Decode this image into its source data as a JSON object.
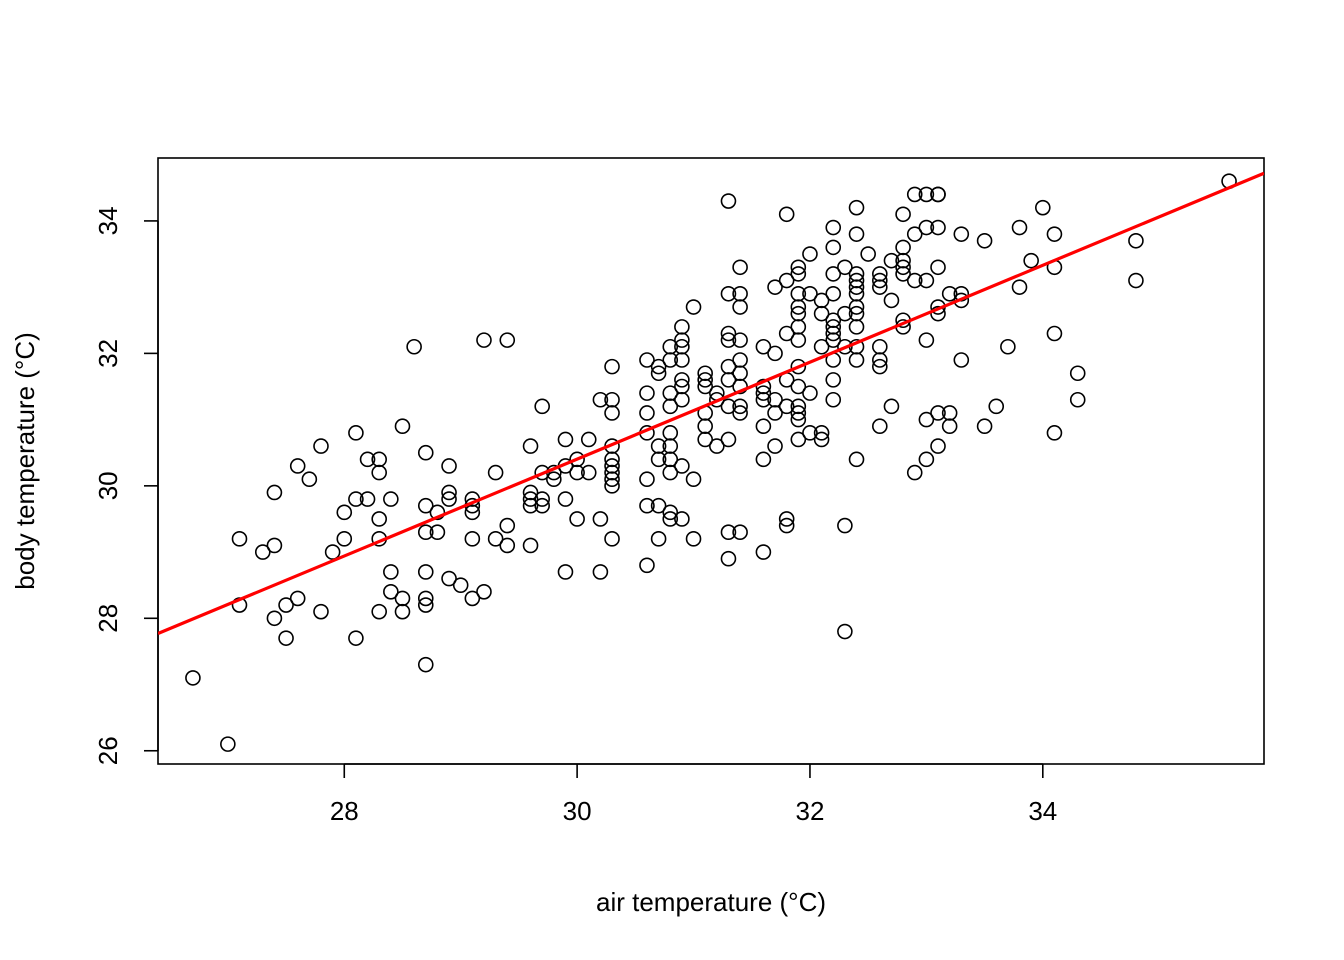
{
  "chart_data": {
    "type": "scatter",
    "xlabel": "air temperature (°C)",
    "ylabel": "body temperature (°C)",
    "xlim": [
      26.4,
      35.9
    ],
    "ylim": [
      25.8,
      34.95
    ],
    "xticks": [
      28,
      30,
      32,
      34
    ],
    "yticks": [
      26,
      28,
      30,
      32,
      34
    ],
    "grid": false,
    "point_color": "#000000",
    "fit_line": {
      "color": "#ff0000",
      "x": [
        26.4,
        35.9
      ],
      "y": [
        27.77,
        34.72
      ]
    },
    "points": [
      [
        26.7,
        27.1
      ],
      [
        27.0,
        26.1
      ],
      [
        27.1,
        29.2
      ],
      [
        27.1,
        28.2
      ],
      [
        27.3,
        29.0
      ],
      [
        27.4,
        29.1
      ],
      [
        27.4,
        29.9
      ],
      [
        27.4,
        28.0
      ],
      [
        27.5,
        28.2
      ],
      [
        27.5,
        27.7
      ],
      [
        27.6,
        30.3
      ],
      [
        27.6,
        28.3
      ],
      [
        27.7,
        30.1
      ],
      [
        27.8,
        30.6
      ],
      [
        27.8,
        28.1
      ],
      [
        27.9,
        29.0
      ],
      [
        28.0,
        29.6
      ],
      [
        28.0,
        29.2
      ],
      [
        28.1,
        30.8
      ],
      [
        28.1,
        29.8
      ],
      [
        28.1,
        27.7
      ],
      [
        28.2,
        30.4
      ],
      [
        28.2,
        29.8
      ],
      [
        28.3,
        30.4
      ],
      [
        28.3,
        30.2
      ],
      [
        28.3,
        29.5
      ],
      [
        28.3,
        29.2
      ],
      [
        28.3,
        28.1
      ],
      [
        28.4,
        29.8
      ],
      [
        28.4,
        28.7
      ],
      [
        28.4,
        28.4
      ],
      [
        28.5,
        30.9
      ],
      [
        28.5,
        28.3
      ],
      [
        28.5,
        28.1
      ],
      [
        28.6,
        32.1
      ],
      [
        28.7,
        30.5
      ],
      [
        28.7,
        29.7
      ],
      [
        28.7,
        29.3
      ],
      [
        28.7,
        28.7
      ],
      [
        28.7,
        28.3
      ],
      [
        28.7,
        28.2
      ],
      [
        28.7,
        27.3
      ],
      [
        28.8,
        29.6
      ],
      [
        28.8,
        29.3
      ],
      [
        28.9,
        30.3
      ],
      [
        28.9,
        29.9
      ],
      [
        28.9,
        29.8
      ],
      [
        28.9,
        28.6
      ],
      [
        29.0,
        28.5
      ],
      [
        29.1,
        29.8
      ],
      [
        29.1,
        29.7
      ],
      [
        29.1,
        29.6
      ],
      [
        29.1,
        29.2
      ],
      [
        29.1,
        28.3
      ],
      [
        29.2,
        32.2
      ],
      [
        29.2,
        28.4
      ],
      [
        29.3,
        30.2
      ],
      [
        29.3,
        29.2
      ],
      [
        29.4,
        32.2
      ],
      [
        29.4,
        29.4
      ],
      [
        29.4,
        29.1
      ],
      [
        29.6,
        30.6
      ],
      [
        29.6,
        29.9
      ],
      [
        29.6,
        29.8
      ],
      [
        29.6,
        29.7
      ],
      [
        29.6,
        29.1
      ],
      [
        29.7,
        31.2
      ],
      [
        29.7,
        30.2
      ],
      [
        29.7,
        29.8
      ],
      [
        29.7,
        29.7
      ],
      [
        29.8,
        30.2
      ],
      [
        29.8,
        30.1
      ],
      [
        29.9,
        30.7
      ],
      [
        29.9,
        30.3
      ],
      [
        29.9,
        29.8
      ],
      [
        29.9,
        28.7
      ],
      [
        30.0,
        30.4
      ],
      [
        30.0,
        30.2
      ],
      [
        30.0,
        29.5
      ],
      [
        30.1,
        30.7
      ],
      [
        30.1,
        30.2
      ],
      [
        30.2,
        31.3
      ],
      [
        30.2,
        29.5
      ],
      [
        30.2,
        28.7
      ],
      [
        30.3,
        31.8
      ],
      [
        30.3,
        31.3
      ],
      [
        30.3,
        31.1
      ],
      [
        30.3,
        30.6
      ],
      [
        30.3,
        30.4
      ],
      [
        30.3,
        30.3
      ],
      [
        30.3,
        30.2
      ],
      [
        30.3,
        30.1
      ],
      [
        30.3,
        30.0
      ],
      [
        30.3,
        29.2
      ],
      [
        30.6,
        31.9
      ],
      [
        30.6,
        31.4
      ],
      [
        30.6,
        31.1
      ],
      [
        30.6,
        30.8
      ],
      [
        30.6,
        30.1
      ],
      [
        30.6,
        29.7
      ],
      [
        30.6,
        28.8
      ],
      [
        30.7,
        31.8
      ],
      [
        30.7,
        31.7
      ],
      [
        30.7,
        30.6
      ],
      [
        30.7,
        30.4
      ],
      [
        30.7,
        29.7
      ],
      [
        30.7,
        29.2
      ],
      [
        30.8,
        32.1
      ],
      [
        30.8,
        31.9
      ],
      [
        30.8,
        31.4
      ],
      [
        30.8,
        31.2
      ],
      [
        30.8,
        30.8
      ],
      [
        30.8,
        30.6
      ],
      [
        30.8,
        30.4
      ],
      [
        30.8,
        30.2
      ],
      [
        30.8,
        29.6
      ],
      [
        30.8,
        29.5
      ],
      [
        30.9,
        32.4
      ],
      [
        30.9,
        32.2
      ],
      [
        30.9,
        32.1
      ],
      [
        30.9,
        31.9
      ],
      [
        30.9,
        31.6
      ],
      [
        30.9,
        31.5
      ],
      [
        30.9,
        31.3
      ],
      [
        30.9,
        30.3
      ],
      [
        30.9,
        29.5
      ],
      [
        31.0,
        32.7
      ],
      [
        31.0,
        30.1
      ],
      [
        31.0,
        29.2
      ],
      [
        31.1,
        31.7
      ],
      [
        31.1,
        31.6
      ],
      [
        31.1,
        31.5
      ],
      [
        31.1,
        31.1
      ],
      [
        31.1,
        30.9
      ],
      [
        31.1,
        30.7
      ],
      [
        31.2,
        31.4
      ],
      [
        31.2,
        31.3
      ],
      [
        31.2,
        30.6
      ],
      [
        31.3,
        34.3
      ],
      [
        31.3,
        32.9
      ],
      [
        31.3,
        32.3
      ],
      [
        31.3,
        32.2
      ],
      [
        31.3,
        31.8
      ],
      [
        31.3,
        31.6
      ],
      [
        31.3,
        31.2
      ],
      [
        31.3,
        30.7
      ],
      [
        31.3,
        29.3
      ],
      [
        31.3,
        28.9
      ],
      [
        31.4,
        33.3
      ],
      [
        31.4,
        32.9
      ],
      [
        31.4,
        32.7
      ],
      [
        31.4,
        32.2
      ],
      [
        31.4,
        31.9
      ],
      [
        31.4,
        31.7
      ],
      [
        31.4,
        31.5
      ],
      [
        31.4,
        31.2
      ],
      [
        31.4,
        31.1
      ],
      [
        31.4,
        29.3
      ],
      [
        31.6,
        32.1
      ],
      [
        31.6,
        31.5
      ],
      [
        31.6,
        31.4
      ],
      [
        31.6,
        31.3
      ],
      [
        31.6,
        30.9
      ],
      [
        31.6,
        30.4
      ],
      [
        31.6,
        29.0
      ],
      [
        31.7,
        33.0
      ],
      [
        31.7,
        32.0
      ],
      [
        31.7,
        31.3
      ],
      [
        31.7,
        31.1
      ],
      [
        31.7,
        30.6
      ],
      [
        31.8,
        34.1
      ],
      [
        31.8,
        33.1
      ],
      [
        31.8,
        32.3
      ],
      [
        31.8,
        31.6
      ],
      [
        31.8,
        31.2
      ],
      [
        31.8,
        29.5
      ],
      [
        31.8,
        29.4
      ],
      [
        31.9,
        33.3
      ],
      [
        31.9,
        33.2
      ],
      [
        31.9,
        32.9
      ],
      [
        31.9,
        32.7
      ],
      [
        31.9,
        32.6
      ],
      [
        31.9,
        32.4
      ],
      [
        31.9,
        32.2
      ],
      [
        31.9,
        31.8
      ],
      [
        31.9,
        31.5
      ],
      [
        31.9,
        31.2
      ],
      [
        31.9,
        31.1
      ],
      [
        31.9,
        31.0
      ],
      [
        31.9,
        30.7
      ],
      [
        32.0,
        33.5
      ],
      [
        32.0,
        32.9
      ],
      [
        32.0,
        31.4
      ],
      [
        32.0,
        30.8
      ],
      [
        32.1,
        32.8
      ],
      [
        32.1,
        32.6
      ],
      [
        32.1,
        32.1
      ],
      [
        32.1,
        30.8
      ],
      [
        32.1,
        30.7
      ],
      [
        32.2,
        33.9
      ],
      [
        32.2,
        33.6
      ],
      [
        32.2,
        33.2
      ],
      [
        32.2,
        32.9
      ],
      [
        32.2,
        32.5
      ],
      [
        32.2,
        32.4
      ],
      [
        32.2,
        32.3
      ],
      [
        32.2,
        32.2
      ],
      [
        32.2,
        31.9
      ],
      [
        32.2,
        31.6
      ],
      [
        32.2,
        31.3
      ],
      [
        32.3,
        33.3
      ],
      [
        32.3,
        32.6
      ],
      [
        32.3,
        32.1
      ],
      [
        32.3,
        29.4
      ],
      [
        32.3,
        27.8
      ],
      [
        32.4,
        34.2
      ],
      [
        32.4,
        33.8
      ],
      [
        32.4,
        33.2
      ],
      [
        32.4,
        33.1
      ],
      [
        32.4,
        33.0
      ],
      [
        32.4,
        32.9
      ],
      [
        32.4,
        32.7
      ],
      [
        32.4,
        32.6
      ],
      [
        32.4,
        32.4
      ],
      [
        32.4,
        32.1
      ],
      [
        32.4,
        31.9
      ],
      [
        32.4,
        30.4
      ],
      [
        32.5,
        33.5
      ],
      [
        32.6,
        33.2
      ],
      [
        32.6,
        33.1
      ],
      [
        32.6,
        33.0
      ],
      [
        32.6,
        32.1
      ],
      [
        32.6,
        31.9
      ],
      [
        32.6,
        31.8
      ],
      [
        32.6,
        30.9
      ],
      [
        32.7,
        33.4
      ],
      [
        32.7,
        32.8
      ],
      [
        32.7,
        31.2
      ],
      [
        32.8,
        34.1
      ],
      [
        32.8,
        33.6
      ],
      [
        32.8,
        33.4
      ],
      [
        32.8,
        33.3
      ],
      [
        32.8,
        33.2
      ],
      [
        32.8,
        32.5
      ],
      [
        32.8,
        32.4
      ],
      [
        32.9,
        34.4
      ],
      [
        32.9,
        33.8
      ],
      [
        32.9,
        33.1
      ],
      [
        32.9,
        30.2
      ],
      [
        33.0,
        34.4
      ],
      [
        33.0,
        33.9
      ],
      [
        33.0,
        33.1
      ],
      [
        33.0,
        32.2
      ],
      [
        33.0,
        31.0
      ],
      [
        33.0,
        30.4
      ],
      [
        33.1,
        34.4
      ],
      [
        33.1,
        34.4
      ],
      [
        33.1,
        33.9
      ],
      [
        33.1,
        33.3
      ],
      [
        33.1,
        32.7
      ],
      [
        33.1,
        32.6
      ],
      [
        33.1,
        31.1
      ],
      [
        33.1,
        30.6
      ],
      [
        33.2,
        32.9
      ],
      [
        33.2,
        31.1
      ],
      [
        33.2,
        30.9
      ],
      [
        33.3,
        33.8
      ],
      [
        33.3,
        32.9
      ],
      [
        33.3,
        32.8
      ],
      [
        33.3,
        31.9
      ],
      [
        33.5,
        33.7
      ],
      [
        33.5,
        30.9
      ],
      [
        33.6,
        31.2
      ],
      [
        33.7,
        32.1
      ],
      [
        33.8,
        33.9
      ],
      [
        33.8,
        33.0
      ],
      [
        33.9,
        33.4
      ],
      [
        34.0,
        34.2
      ],
      [
        34.1,
        33.8
      ],
      [
        34.1,
        33.3
      ],
      [
        34.1,
        32.3
      ],
      [
        34.1,
        30.8
      ],
      [
        34.3,
        31.7
      ],
      [
        34.3,
        31.3
      ],
      [
        34.8,
        33.7
      ],
      [
        34.8,
        33.1
      ],
      [
        35.6,
        34.6
      ]
    ]
  }
}
